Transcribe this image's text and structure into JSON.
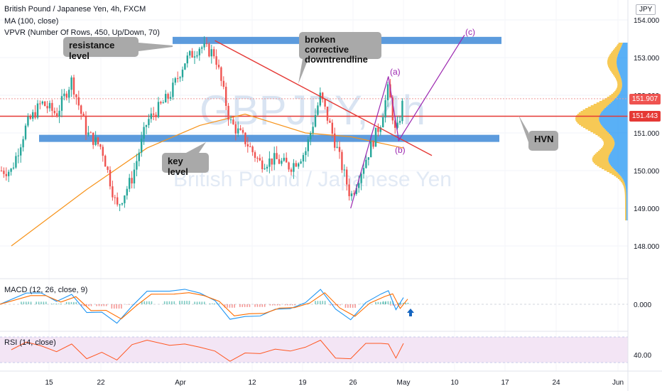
{
  "header": {
    "symbol": "British Pound / Japanese Yen, 4h, FXCM",
    "ma": "MA (100, close)",
    "vpvr": "VPVR (Number Of Rows, 450, Up/Down, 70)"
  },
  "watermark": {
    "ticker": "GBPJPY, 4h",
    "name": "British Pound / Japanese Yen"
  },
  "currency_badge": "JPY",
  "annotations": {
    "resistance": "resistance level",
    "broken_line": "broken corrective downtrendline",
    "key_level": "key level",
    "hvn": "HVN",
    "wave_a": "(a)",
    "wave_b": "(b)",
    "wave_c": "(c)"
  },
  "price_tags": {
    "upper": "151.907",
    "lower": "151.443"
  },
  "macd_label": "MACD (12, 26, close, 9)",
  "rsi_label": "RSI (14, close)",
  "colors": {
    "up": "#26a69a",
    "down": "#ef5350",
    "ma": "#f7931a",
    "zone": "#4a90d9",
    "trendline": "#e53935",
    "wave": "#9c27b0",
    "macd": "#2196f3",
    "signal": "#ff6d00",
    "rsi": "#ff5722",
    "rsi_band": "#f3e5f5"
  },
  "chart_data": {
    "type": "candlestick",
    "title": "British Pound / Japanese Yen, 4h, FXCM",
    "price_axis": {
      "ticks": [
        "154.000",
        "153.000",
        "152.000",
        "151.000",
        "150.000",
        "149.000",
        "148.000"
      ],
      "ylim": [
        147.6,
        154.3
      ]
    },
    "x_ticks": [
      "15",
      "22",
      "Apr",
      "12",
      "19",
      "26",
      "May",
      "10",
      "17",
      "24",
      "Jun"
    ],
    "ohlc_path": [
      {
        "date": "Mar 10",
        "price": 150.0
      },
      {
        "date": "Mar 12",
        "price": 151.2
      },
      {
        "date": "Mar 14",
        "price": 151.8
      },
      {
        "date": "Mar 16",
        "price": 151.5
      },
      {
        "date": "Mar 18",
        "price": 152.4
      },
      {
        "date": "Mar 20",
        "price": 151.0
      },
      {
        "date": "Mar 22",
        "price": 150.6
      },
      {
        "date": "Mar 24",
        "price": 149.0
      },
      {
        "date": "Mar 26",
        "price": 149.8
      },
      {
        "date": "Mar 28",
        "price": 151.3
      },
      {
        "date": "Mar 31",
        "price": 152.0
      },
      {
        "date": "Apr 2",
        "price": 152.9
      },
      {
        "date": "Apr 4",
        "price": 153.3
      },
      {
        "date": "Apr 6",
        "price": 153.1
      },
      {
        "date": "Apr 8",
        "price": 151.3
      },
      {
        "date": "Apr 10",
        "price": 150.8
      },
      {
        "date": "Apr 12",
        "price": 150.2
      },
      {
        "date": "Apr 14",
        "price": 150.3
      },
      {
        "date": "Apr 16",
        "price": 150.1
      },
      {
        "date": "Apr 18",
        "price": 150.5
      },
      {
        "date": "Apr 20",
        "price": 152.0
      },
      {
        "date": "Apr 22",
        "price": 150.7
      },
      {
        "date": "Apr 24",
        "price": 149.3
      },
      {
        "date": "Apr 26",
        "price": 150.3
      },
      {
        "date": "Apr 28",
        "price": 151.3
      },
      {
        "date": "Apr 29",
        "price": 152.2
      },
      {
        "date": "Apr 30",
        "price": 150.9
      },
      {
        "date": "May 1",
        "price": 151.9
      }
    ],
    "ma_path": [
      {
        "date": "Mar 10",
        "price": 148.0
      },
      {
        "date": "Mar 20",
        "price": 149.5
      },
      {
        "date": "Mar 28",
        "price": 150.6
      },
      {
        "date": "Apr 4",
        "price": 151.2
      },
      {
        "date": "Apr 10",
        "price": 151.5
      },
      {
        "date": "Apr 18",
        "price": 151.0
      },
      {
        "date": "Apr 24",
        "price": 150.9
      },
      {
        "date": "May 1",
        "price": 150.6
      }
    ],
    "levels": {
      "resistance": 153.4,
      "key": 150.8,
      "hvn": 151.443
    },
    "macd_ticks": [
      "0.000"
    ],
    "rsi_ticks": [
      "40.00"
    ]
  }
}
